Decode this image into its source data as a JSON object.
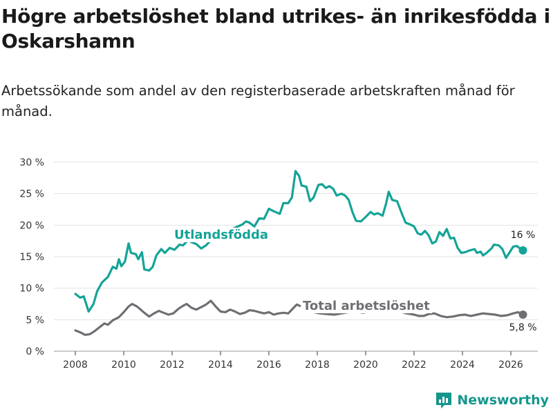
{
  "title": "Högre arbetslöshet bland utrikes- än inrikesfödda i Oskarshamn",
  "subtitle": "Arbetssökande som andel av den registerbaserade arbetskraften månad för månad.",
  "brand": {
    "name": "Newsworthy",
    "icon": "newsworthy-logo-icon",
    "color": "#15968c"
  },
  "colors": {
    "foreign_born": "#14a397",
    "total": "#6f6e73",
    "grid": "#e3e3e3",
    "axis": "#333333"
  },
  "chart_data": {
    "type": "line",
    "title": "Högre arbetslöshet bland utrikes- än inrikesfödda i Oskarshamn",
    "xlabel": "",
    "ylabel": "",
    "xlim": [
      2008,
      2026.6
    ],
    "ylim": [
      0,
      30
    ],
    "x_ticks": [
      2008,
      2010,
      2012,
      2014,
      2016,
      2018,
      2020,
      2022,
      2024,
      2026
    ],
    "x_tick_labels": [
      "2008",
      "2010",
      "2012",
      "2014",
      "2016",
      "2018",
      "2020",
      "2022",
      "2024",
      "2026"
    ],
    "y_ticks": [
      0,
      5,
      10,
      15,
      20,
      25,
      30
    ],
    "y_tick_labels": [
      "0 %",
      "5 %",
      "10 %",
      "15 %",
      "20 %",
      "25 %",
      "30 %"
    ],
    "grid": true,
    "series": [
      {
        "name": "Utlandsfödda",
        "color": "#14a397",
        "end_label": "16 %",
        "end_value": 16,
        "points": [
          [
            2008.0,
            9.1
          ],
          [
            2008.2,
            8.5
          ],
          [
            2008.35,
            8.7
          ],
          [
            2008.55,
            6.3
          ],
          [
            2008.75,
            7.5
          ],
          [
            2008.9,
            9.5
          ],
          [
            2009.1,
            10.9
          ],
          [
            2009.35,
            11.8
          ],
          [
            2009.55,
            13.4
          ],
          [
            2009.7,
            13.1
          ],
          [
            2009.8,
            14.6
          ],
          [
            2009.9,
            13.5
          ],
          [
            2010.05,
            14.2
          ],
          [
            2010.2,
            17.1
          ],
          [
            2010.3,
            15.6
          ],
          [
            2010.5,
            15.4
          ],
          [
            2010.6,
            14.6
          ],
          [
            2010.75,
            15.7
          ],
          [
            2010.85,
            13.0
          ],
          [
            2011.05,
            12.8
          ],
          [
            2011.2,
            13.4
          ],
          [
            2011.35,
            15.2
          ],
          [
            2011.55,
            16.2
          ],
          [
            2011.7,
            15.6
          ],
          [
            2011.9,
            16.4
          ],
          [
            2012.1,
            16.1
          ],
          [
            2012.3,
            16.9
          ],
          [
            2012.45,
            16.8
          ],
          [
            2012.65,
            17.6
          ],
          [
            2012.8,
            17.3
          ],
          [
            2013.0,
            17.0
          ],
          [
            2013.2,
            16.3
          ],
          [
            2013.4,
            16.8
          ],
          [
            2013.6,
            17.6
          ],
          [
            2013.8,
            17.9
          ],
          [
            2014.0,
            18.4
          ],
          [
            2014.3,
            18.8
          ],
          [
            2014.6,
            19.6
          ],
          [
            2014.9,
            20.1
          ],
          [
            2015.05,
            20.6
          ],
          [
            2015.2,
            20.4
          ],
          [
            2015.4,
            19.8
          ],
          [
            2015.6,
            21.1
          ],
          [
            2015.8,
            21.0
          ],
          [
            2016.0,
            22.6
          ],
          [
            2016.2,
            22.2
          ],
          [
            2016.45,
            21.8
          ],
          [
            2016.6,
            23.5
          ],
          [
            2016.8,
            23.5
          ],
          [
            2016.95,
            24.4
          ],
          [
            2017.1,
            28.6
          ],
          [
            2017.25,
            27.8
          ],
          [
            2017.35,
            26.3
          ],
          [
            2017.55,
            26.1
          ],
          [
            2017.7,
            23.8
          ],
          [
            2017.85,
            24.4
          ],
          [
            2018.05,
            26.4
          ],
          [
            2018.2,
            26.5
          ],
          [
            2018.35,
            25.9
          ],
          [
            2018.5,
            26.2
          ],
          [
            2018.65,
            25.8
          ],
          [
            2018.8,
            24.7
          ],
          [
            2019.0,
            25.0
          ],
          [
            2019.15,
            24.7
          ],
          [
            2019.3,
            24.0
          ],
          [
            2019.45,
            22.1
          ],
          [
            2019.6,
            20.7
          ],
          [
            2019.8,
            20.6
          ],
          [
            2020.0,
            21.3
          ],
          [
            2020.2,
            22.1
          ],
          [
            2020.35,
            21.7
          ],
          [
            2020.5,
            21.9
          ],
          [
            2020.7,
            21.5
          ],
          [
            2020.85,
            23.5
          ],
          [
            2020.95,
            25.3
          ],
          [
            2021.1,
            24.0
          ],
          [
            2021.3,
            23.8
          ],
          [
            2021.5,
            21.8
          ],
          [
            2021.65,
            20.4
          ],
          [
            2021.85,
            20.1
          ],
          [
            2022.0,
            19.8
          ],
          [
            2022.15,
            18.7
          ],
          [
            2022.3,
            18.5
          ],
          [
            2022.45,
            19.1
          ],
          [
            2022.6,
            18.4
          ],
          [
            2022.75,
            17.1
          ],
          [
            2022.9,
            17.4
          ],
          [
            2023.05,
            18.9
          ],
          [
            2023.2,
            18.3
          ],
          [
            2023.35,
            19.4
          ],
          [
            2023.5,
            17.9
          ],
          [
            2023.65,
            18.0
          ],
          [
            2023.8,
            16.4
          ],
          [
            2023.95,
            15.6
          ],
          [
            2024.1,
            15.7
          ],
          [
            2024.3,
            16.0
          ],
          [
            2024.5,
            16.2
          ],
          [
            2024.6,
            15.6
          ],
          [
            2024.75,
            15.8
          ],
          [
            2024.85,
            15.2
          ],
          [
            2025.0,
            15.6
          ],
          [
            2025.2,
            16.3
          ],
          [
            2025.3,
            16.9
          ],
          [
            2025.5,
            16.8
          ],
          [
            2025.65,
            16.2
          ],
          [
            2025.8,
            14.8
          ],
          [
            2025.95,
            15.7
          ],
          [
            2026.1,
            16.6
          ],
          [
            2026.25,
            16.7
          ],
          [
            2026.4,
            16.2
          ],
          [
            2026.5,
            16.0
          ]
        ]
      },
      {
        "name": "Total arbetslöshet",
        "color": "#6f6e73",
        "end_label": "5,8 %",
        "end_value": 5.8,
        "points": [
          [
            2008.0,
            3.3
          ],
          [
            2008.2,
            3.0
          ],
          [
            2008.4,
            2.6
          ],
          [
            2008.6,
            2.7
          ],
          [
            2008.8,
            3.2
          ],
          [
            2009.0,
            3.8
          ],
          [
            2009.2,
            4.4
          ],
          [
            2009.35,
            4.2
          ],
          [
            2009.55,
            4.9
          ],
          [
            2009.8,
            5.4
          ],
          [
            2010.0,
            6.2
          ],
          [
            2010.2,
            7.1
          ],
          [
            2010.35,
            7.5
          ],
          [
            2010.55,
            7.1
          ],
          [
            2010.7,
            6.6
          ],
          [
            2010.85,
            6.1
          ],
          [
            2011.05,
            5.5
          ],
          [
            2011.25,
            6.0
          ],
          [
            2011.45,
            6.4
          ],
          [
            2011.65,
            6.1
          ],
          [
            2011.85,
            5.8
          ],
          [
            2012.05,
            6.0
          ],
          [
            2012.25,
            6.7
          ],
          [
            2012.45,
            7.2
          ],
          [
            2012.6,
            7.5
          ],
          [
            2012.8,
            6.9
          ],
          [
            2013.0,
            6.6
          ],
          [
            2013.2,
            7.0
          ],
          [
            2013.4,
            7.4
          ],
          [
            2013.6,
            8.0
          ],
          [
            2013.8,
            7.1
          ],
          [
            2014.0,
            6.3
          ],
          [
            2014.2,
            6.2
          ],
          [
            2014.4,
            6.6
          ],
          [
            2014.6,
            6.3
          ],
          [
            2014.8,
            5.9
          ],
          [
            2015.0,
            6.1
          ],
          [
            2015.2,
            6.5
          ],
          [
            2015.4,
            6.4
          ],
          [
            2015.6,
            6.2
          ],
          [
            2015.8,
            6.0
          ],
          [
            2016.0,
            6.2
          ],
          [
            2016.2,
            5.8
          ],
          [
            2016.4,
            6.0
          ],
          [
            2016.6,
            6.1
          ],
          [
            2016.8,
            6.0
          ],
          [
            2017.0,
            6.8
          ],
          [
            2017.15,
            7.4
          ],
          [
            2017.35,
            7.1
          ],
          [
            2017.6,
            6.5
          ],
          [
            2017.85,
            6.2
          ],
          [
            2018.1,
            6.0
          ],
          [
            2018.4,
            5.9
          ],
          [
            2018.7,
            5.8
          ],
          [
            2019.0,
            6.0
          ],
          [
            2019.3,
            6.2
          ],
          [
            2019.6,
            6.3
          ],
          [
            2019.9,
            6.1
          ],
          [
            2020.2,
            6.4
          ],
          [
            2020.5,
            7.0
          ],
          [
            2020.8,
            6.8
          ],
          [
            2021.1,
            6.5
          ],
          [
            2021.4,
            6.3
          ],
          [
            2021.7,
            6.0
          ],
          [
            2022.0,
            5.8
          ],
          [
            2022.2,
            5.6
          ],
          [
            2022.4,
            5.6
          ],
          [
            2022.6,
            5.9
          ],
          [
            2022.85,
            6.0
          ],
          [
            2023.1,
            5.6
          ],
          [
            2023.35,
            5.4
          ],
          [
            2023.6,
            5.5
          ],
          [
            2023.85,
            5.7
          ],
          [
            2024.1,
            5.8
          ],
          [
            2024.35,
            5.6
          ],
          [
            2024.6,
            5.8
          ],
          [
            2024.85,
            6.0
          ],
          [
            2025.1,
            5.9
          ],
          [
            2025.35,
            5.8
          ],
          [
            2025.6,
            5.6
          ],
          [
            2025.85,
            5.7
          ],
          [
            2026.1,
            6.0
          ],
          [
            2026.3,
            6.2
          ],
          [
            2026.5,
            5.8
          ]
        ]
      }
    ]
  }
}
